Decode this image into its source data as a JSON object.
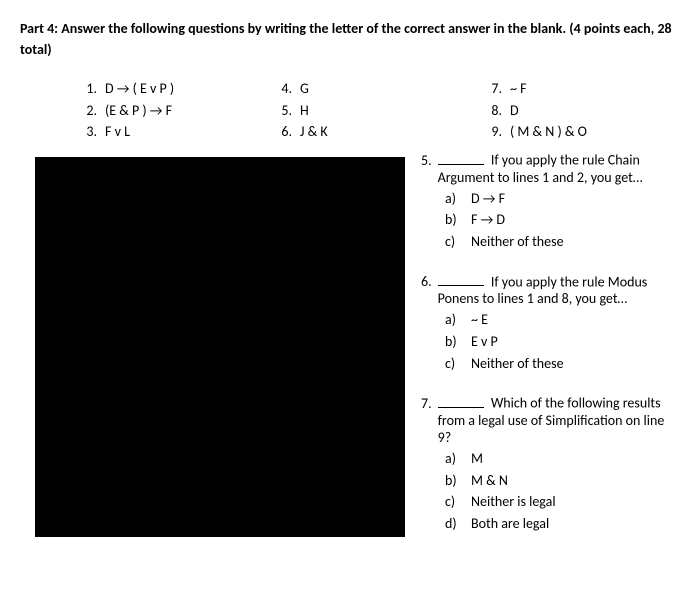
{
  "header": {
    "title": "Part 4:  Answer the following questions by writing the letter of the correct answer in the blank.  (4 points each, 28 total)"
  },
  "premises": {
    "col1": [
      {
        "n": "1.",
        "t": "D → ( E v P )"
      },
      {
        "n": "2.",
        "t": "(E & P ) → F"
      },
      {
        "n": "3.",
        "t": "F v L"
      }
    ],
    "col2": [
      {
        "n": "4.",
        "t": "G"
      },
      {
        "n": "5.",
        "t": "H"
      },
      {
        "n": "6.",
        "t": "J & K"
      }
    ],
    "col3": [
      {
        "n": "7.",
        "t": "~ F"
      },
      {
        "n": "8.",
        "t": "D"
      },
      {
        "n": "9.",
        "t": "( M & N ) & O"
      }
    ]
  },
  "questions": [
    {
      "num": "5.",
      "lead": "If you apply the rule Chain Argument to lines 1 and 2, you get…",
      "choices": [
        {
          "l": "a)",
          "t": "D → F"
        },
        {
          "l": "b)",
          "t": "F → D"
        },
        {
          "l": "c)",
          "t": "Neither of these"
        }
      ]
    },
    {
      "num": "6.",
      "lead": "If you apply the rule Modus Ponens to lines 1 and 8, you get…",
      "choices": [
        {
          "l": "a)",
          "t": "~ E"
        },
        {
          "l": "b)",
          "t": "E v P"
        },
        {
          "l": "c)",
          "t": "Neither of these"
        }
      ]
    },
    {
      "num": "7.",
      "lead": "Which of the following results from a legal use of Simplification on line 9?",
      "choices": [
        {
          "l": "a)",
          "t": "M"
        },
        {
          "l": "b)",
          "t": "M & N"
        },
        {
          "l": "c)",
          "t": "Neither is legal"
        },
        {
          "l": "d)",
          "t": "Both are legal"
        }
      ]
    }
  ]
}
